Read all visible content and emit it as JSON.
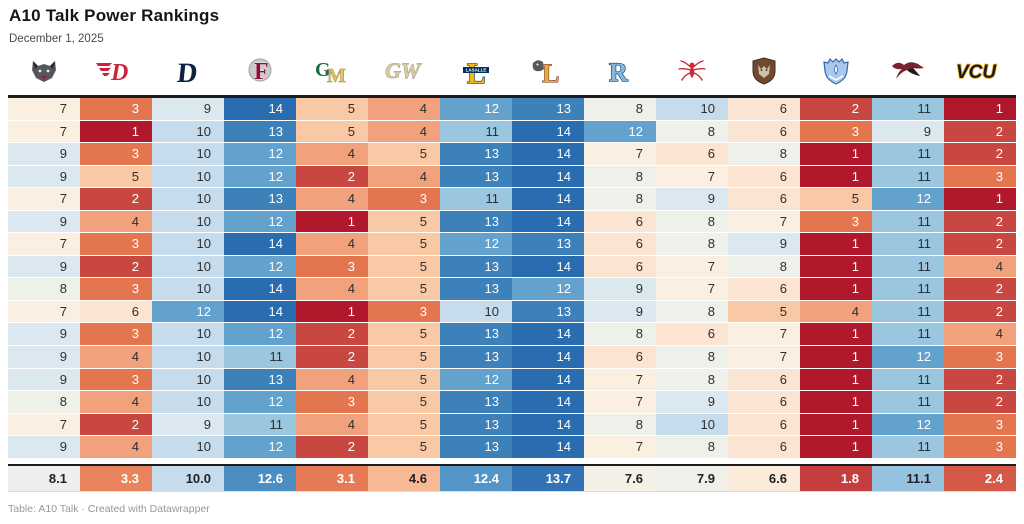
{
  "header": {
    "title": "A10 Talk Power Rankings",
    "date": "December 1, 2025"
  },
  "footer": {
    "prefix": "Table: ",
    "source": "A10 Talk",
    "separator": " · ",
    "credit": "Created with Datawrapper"
  },
  "chart_data": {
    "type": "heatmap",
    "title": "A10 Talk Power Rankings",
    "subtitle": "December 1, 2025",
    "columns": [
      {
        "id": "davidson",
        "team": "Davidson Wildcats"
      },
      {
        "id": "dayton",
        "team": "Dayton Flyers"
      },
      {
        "id": "duquesne",
        "team": "Duquesne Dukes"
      },
      {
        "id": "fordham",
        "team": "Fordham Rams"
      },
      {
        "id": "george-mason",
        "team": "George Mason Patriots"
      },
      {
        "id": "george-washington",
        "team": "George Washington Revolutionaries"
      },
      {
        "id": "la-salle",
        "team": "La Salle Explorers"
      },
      {
        "id": "loyola-chicago",
        "team": "Loyola Chicago Ramblers"
      },
      {
        "id": "rhode-island",
        "team": "Rhode Island Rams"
      },
      {
        "id": "richmond",
        "team": "Richmond Spiders"
      },
      {
        "id": "st-bonaventure",
        "team": "St. Bonaventure Bonnies"
      },
      {
        "id": "saint-louis",
        "team": "Saint Louis Billikens"
      },
      {
        "id": "saint-josephs",
        "team": "Saint Joseph's Hawks"
      },
      {
        "id": "vcu",
        "team": "VCU Rams"
      }
    ],
    "rows": [
      [
        7,
        3,
        9,
        14,
        5,
        4,
        12,
        13,
        8,
        10,
        6,
        2,
        11,
        1
      ],
      [
        7,
        1,
        10,
        13,
        5,
        4,
        11,
        14,
        12,
        8,
        6,
        3,
        9,
        2
      ],
      [
        9,
        3,
        10,
        12,
        4,
        5,
        13,
        14,
        7,
        6,
        8,
        1,
        11,
        2
      ],
      [
        9,
        5,
        10,
        12,
        2,
        4,
        13,
        14,
        8,
        7,
        6,
        1,
        11,
        3
      ],
      [
        7,
        2,
        10,
        13,
        4,
        3,
        11,
        14,
        8,
        9,
        6,
        5,
        12,
        1
      ],
      [
        9,
        4,
        10,
        12,
        1,
        5,
        13,
        14,
        6,
        8,
        7,
        3,
        11,
        2
      ],
      [
        7,
        3,
        10,
        14,
        4,
        5,
        12,
        13,
        6,
        8,
        9,
        1,
        11,
        2
      ],
      [
        9,
        2,
        10,
        12,
        3,
        5,
        13,
        14,
        6,
        7,
        8,
        1,
        11,
        4
      ],
      [
        8,
        3,
        10,
        14,
        4,
        5,
        13,
        12,
        9,
        7,
        6,
        1,
        11,
        2
      ],
      [
        7,
        6,
        12,
        14,
        1,
        3,
        10,
        13,
        9,
        8,
        5,
        4,
        11,
        2
      ],
      [
        9,
        3,
        10,
        12,
        2,
        5,
        13,
        14,
        8,
        6,
        7,
        1,
        11,
        4
      ],
      [
        9,
        4,
        10,
        11,
        2,
        5,
        13,
        14,
        6,
        8,
        7,
        1,
        12,
        3
      ],
      [
        9,
        3,
        10,
        13,
        4,
        5,
        12,
        14,
        7,
        8,
        6,
        1,
        11,
        2
      ],
      [
        8,
        4,
        10,
        12,
        3,
        5,
        13,
        14,
        7,
        9,
        6,
        1,
        11,
        2
      ],
      [
        7,
        2,
        9,
        11,
        4,
        5,
        13,
        14,
        8,
        10,
        6,
        1,
        12,
        3
      ],
      [
        9,
        4,
        10,
        12,
        2,
        5,
        13,
        14,
        7,
        8,
        6,
        1,
        11,
        3
      ]
    ],
    "averages": [
      "8.1",
      "3.3",
      "10.0",
      "12.6",
      "3.1",
      "4.6",
      "12.4",
      "13.7",
      "7.6",
      "7.9",
      "6.6",
      "1.8",
      "11.1",
      "2.4"
    ],
    "scale": {
      "domain": [
        1,
        14
      ],
      "palette": [
        "#b2182b",
        "#c94741",
        "#e4764f",
        "#f2a17d",
        "#f9c8a5",
        "#fce4d2",
        "#faefe0",
        "#eef0ea",
        "#dce8ef",
        "#c6dcec",
        "#9bc6e0",
        "#62a2cd",
        "#3d81bb",
        "#2a6cb0"
      ],
      "text_dark": "#2e2e2e",
      "text_light": "#ffffff"
    }
  }
}
